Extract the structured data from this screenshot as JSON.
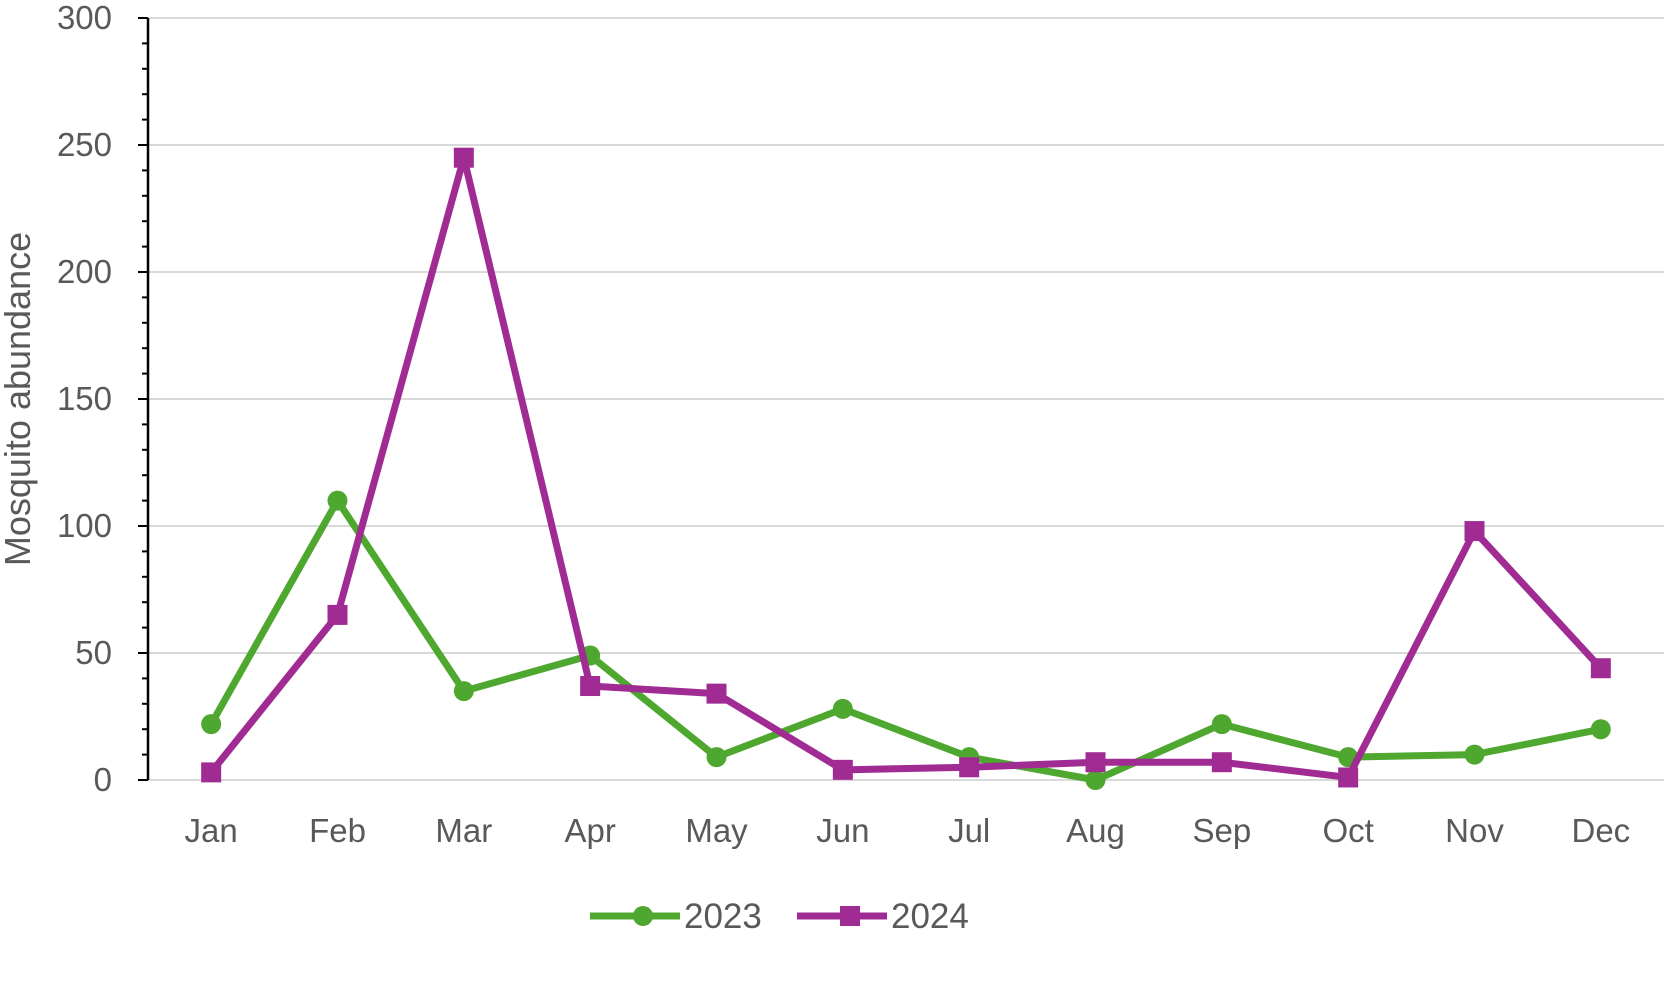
{
  "chart_data": {
    "type": "line",
    "title": "",
    "xlabel": "",
    "ylabel": "Mosquito abundance",
    "categories": [
      "Jan",
      "Feb",
      "Mar",
      "Apr",
      "May",
      "Jun",
      "Jul",
      "Aug",
      "Sep",
      "Oct",
      "Nov",
      "Dec"
    ],
    "ylim": [
      0,
      300
    ],
    "yticks": [
      0,
      50,
      100,
      150,
      200,
      250,
      300
    ],
    "grid": true,
    "legend_position": "bottom",
    "series": [
      {
        "name": "2023",
        "color": "#4ea72e",
        "marker": "circle",
        "values": [
          22,
          110,
          35,
          49,
          9,
          28,
          9,
          0,
          22,
          9,
          10,
          20
        ]
      },
      {
        "name": "2024",
        "color": "#a02b93",
        "marker": "square",
        "values": [
          3,
          65,
          245,
          37,
          34,
          4,
          5,
          7,
          7,
          1,
          98,
          44
        ]
      }
    ]
  }
}
